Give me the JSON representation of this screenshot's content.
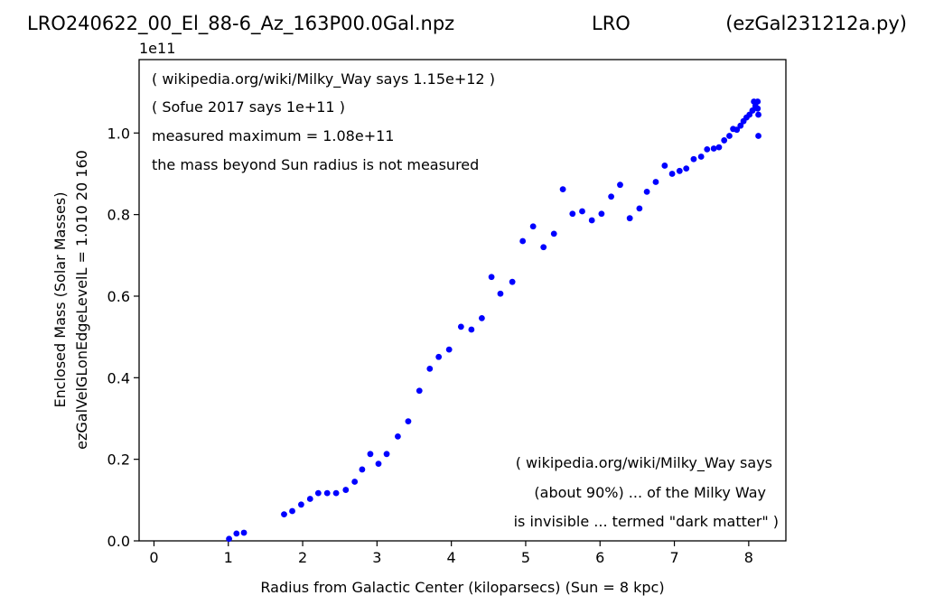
{
  "header": {
    "file": "LRO240622_00_El_88-6_Az_163P00.0Gal.npz",
    "source": "LRO",
    "script": "(ezGal231212a.py)"
  },
  "chart_data": {
    "type": "scatter",
    "title": "",
    "xlabel": "Radius from Galactic Center (kiloparsecs)  (Sun = 8 kpc)",
    "ylabel_line1": "Enclosed Mass (Solar Masses)",
    "ylabel_line2": "ezGalVelGLonEdgeLevelL = 1.010  20  160",
    "y_offset_label": "1e11",
    "xlim": [
      -0.2,
      8.5
    ],
    "ylim": [
      0,
      1.18
    ],
    "y_scale_note": "y values in units of 1e11 solar masses",
    "x_ticks": [
      0,
      1,
      2,
      3,
      4,
      5,
      6,
      7,
      8
    ],
    "x_tick_labels": [
      "0",
      "1",
      "2",
      "3",
      "4",
      "5",
      "6",
      "7",
      "8"
    ],
    "y_ticks": [
      0.0,
      0.2,
      0.4,
      0.6,
      0.8,
      1.0
    ],
    "y_tick_labels": [
      "0.0",
      "0.2",
      "0.4",
      "0.6",
      "0.8",
      "1.0"
    ],
    "grid": false,
    "marker_color": "#0000ff",
    "annotations_top": [
      "( wikipedia.org/wiki/Milky_Way says 1.15e+12 )",
      "( Sofue 2017 says 1e+11 )",
      "measured maximum = 1.08e+11",
      "the mass beyond Sun radius is not measured"
    ],
    "annotations_bottom": [
      "( wikipedia.org/wiki/Milky_Way says",
      "(about 90%) ... of the Milky Way",
      "is invisible ... termed \"dark matter\" )"
    ],
    "points": [
      [
        1.01,
        0.005
      ],
      [
        1.11,
        0.018
      ],
      [
        1.21,
        0.02
      ],
      [
        1.75,
        0.065
      ],
      [
        1.86,
        0.073
      ],
      [
        1.98,
        0.089
      ],
      [
        2.1,
        0.103
      ],
      [
        2.21,
        0.117
      ],
      [
        2.33,
        0.117
      ],
      [
        2.45,
        0.117
      ],
      [
        2.58,
        0.125
      ],
      [
        2.7,
        0.145
      ],
      [
        2.8,
        0.175
      ],
      [
        2.91,
        0.213
      ],
      [
        3.02,
        0.189
      ],
      [
        3.13,
        0.213
      ],
      [
        3.28,
        0.256
      ],
      [
        3.42,
        0.293
      ],
      [
        3.57,
        0.368
      ],
      [
        3.71,
        0.422
      ],
      [
        3.83,
        0.451
      ],
      [
        3.97,
        0.469
      ],
      [
        4.13,
        0.525
      ],
      [
        4.27,
        0.518
      ],
      [
        4.41,
        0.546
      ],
      [
        4.54,
        0.647
      ],
      [
        4.66,
        0.606
      ],
      [
        4.82,
        0.635
      ],
      [
        4.96,
        0.735
      ],
      [
        5.1,
        0.771
      ],
      [
        5.24,
        0.72
      ],
      [
        5.38,
        0.753
      ],
      [
        5.5,
        0.862
      ],
      [
        5.63,
        0.802
      ],
      [
        5.76,
        0.808
      ],
      [
        5.89,
        0.786
      ],
      [
        6.02,
        0.802
      ],
      [
        6.15,
        0.844
      ],
      [
        6.27,
        0.873
      ],
      [
        6.4,
        0.791
      ],
      [
        6.53,
        0.815
      ],
      [
        6.63,
        0.856
      ],
      [
        6.75,
        0.88
      ],
      [
        6.87,
        0.92
      ],
      [
        6.97,
        0.9
      ],
      [
        7.07,
        0.907
      ],
      [
        7.16,
        0.913
      ],
      [
        7.26,
        0.936
      ],
      [
        7.36,
        0.942
      ],
      [
        7.44,
        0.96
      ],
      [
        7.53,
        0.962
      ],
      [
        7.6,
        0.965
      ],
      [
        7.67,
        0.982
      ],
      [
        7.74,
        0.993
      ],
      [
        7.79,
        1.01
      ],
      [
        7.84,
        1.008
      ],
      [
        7.89,
        1.018
      ],
      [
        7.93,
        1.029
      ],
      [
        7.97,
        1.038
      ],
      [
        8.01,
        1.045
      ],
      [
        8.05,
        1.055
      ],
      [
        8.07,
        1.077
      ],
      [
        8.09,
        1.066
      ],
      [
        8.12,
        1.077
      ],
      [
        8.12,
        1.06
      ],
      [
        8.13,
        1.045
      ],
      [
        8.13,
        0.993
      ]
    ]
  }
}
